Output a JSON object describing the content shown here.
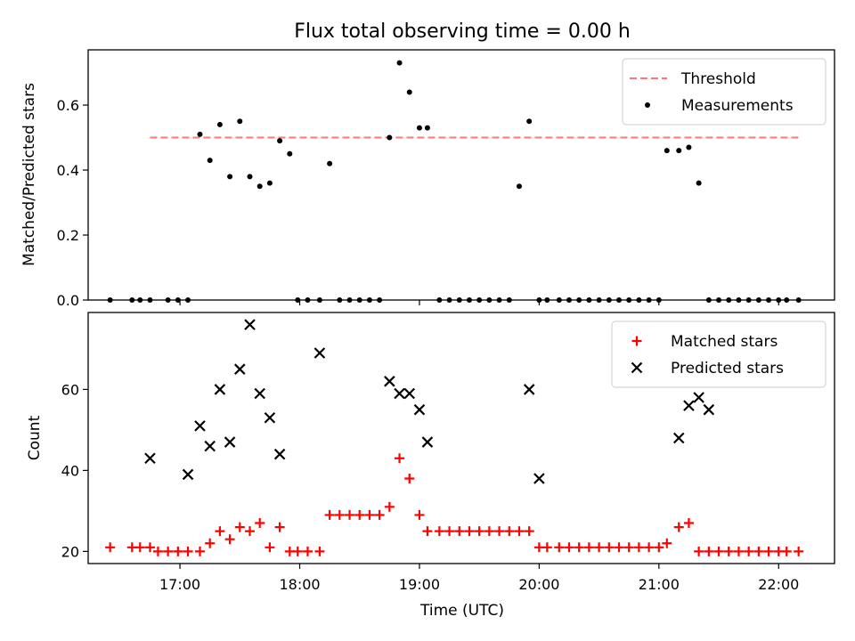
{
  "figure": {
    "title": "Flux total observing time = 0.00 h"
  },
  "chart_data": [
    {
      "type": "scatter",
      "ylabel": "Matched/Predicted stars",
      "xlabel": "",
      "xlim": [
        "16:14",
        "22:28"
      ],
      "ylim": [
        0,
        0.77
      ],
      "yticks": [
        "0.0",
        "0.2",
        "0.4",
        "0.6"
      ],
      "grid": false,
      "legend_position": "top-right",
      "threshold": {
        "name": "Threshold",
        "value": 0.5,
        "x_range": [
          "16:45",
          "22:11"
        ],
        "color": "#ff7777",
        "style": "dashed"
      },
      "series": [
        {
          "name": "Measurements",
          "color": "#000000",
          "marker": "dot",
          "x": [
            "16:25",
            "16:36",
            "16:40",
            "16:45",
            "16:54",
            "16:59",
            "17:04",
            "17:10",
            "17:15",
            "17:20",
            "17:25",
            "17:30",
            "17:35",
            "17:40",
            "17:45",
            "17:50",
            "17:55",
            "17:59",
            "18:04",
            "18:10",
            "18:15",
            "18:20",
            "18:25",
            "18:30",
            "18:35",
            "18:40",
            "18:45",
            "18:50",
            "18:55",
            "19:00",
            "19:04",
            "19:10",
            "19:15",
            "19:20",
            "19:25",
            "19:30",
            "19:35",
            "19:40",
            "19:45",
            "19:50",
            "19:55",
            "20:00",
            "20:04",
            "20:10",
            "20:15",
            "20:20",
            "20:25",
            "20:30",
            "20:35",
            "20:40",
            "20:45",
            "20:50",
            "20:55",
            "21:00",
            "21:04",
            "21:10",
            "21:15",
            "21:20",
            "21:25",
            "21:30",
            "21:35",
            "21:40",
            "21:45",
            "21:50",
            "21:55",
            "22:00",
            "22:04",
            "22:10"
          ],
          "y": [
            0.0,
            0.0,
            0.0,
            0.0,
            0.0,
            0.0,
            0.0,
            0.51,
            0.43,
            0.54,
            0.38,
            0.55,
            0.38,
            0.35,
            0.36,
            0.49,
            0.45,
            0.0,
            0.0,
            0.0,
            0.42,
            0.0,
            0.0,
            0.0,
            0.0,
            0.0,
            0.5,
            0.73,
            0.64,
            0.53,
            0.53,
            0.0,
            0.0,
            0.0,
            0.0,
            0.0,
            0.0,
            0.0,
            0.0,
            0.35,
            0.55,
            0.0,
            0.0,
            0.0,
            0.0,
            0.0,
            0.0,
            0.0,
            0.0,
            0.0,
            0.0,
            0.0,
            0.0,
            0.0,
            0.46,
            0.46,
            0.47,
            0.36,
            0.0,
            0.0,
            0.0,
            0.0,
            0.0,
            0.0,
            0.0,
            0.0,
            0.0,
            0.0
          ]
        }
      ]
    },
    {
      "type": "scatter",
      "ylabel": "Count",
      "xlabel": "Time (UTC)",
      "xlim": [
        "16:14",
        "22:28"
      ],
      "ylim": [
        17,
        79
      ],
      "yticks": [
        "20",
        "40",
        "60"
      ],
      "xticks": [
        "17:00",
        "18:00",
        "19:00",
        "20:00",
        "21:00",
        "22:00"
      ],
      "grid": false,
      "legend_position": "top-right",
      "series": [
        {
          "name": "Matched stars",
          "color": "#ff0000",
          "marker": "plus",
          "x": [
            "16:25",
            "16:36",
            "16:40",
            "16:45",
            "16:49",
            "16:54",
            "16:59",
            "17:04",
            "17:10",
            "17:15",
            "17:20",
            "17:25",
            "17:30",
            "17:35",
            "17:40",
            "17:45",
            "17:50",
            "17:55",
            "17:59",
            "18:04",
            "18:10",
            "18:15",
            "18:20",
            "18:25",
            "18:30",
            "18:35",
            "18:40",
            "18:45",
            "18:50",
            "18:55",
            "19:00",
            "19:04",
            "19:10",
            "19:15",
            "19:20",
            "19:25",
            "19:30",
            "19:35",
            "19:40",
            "19:45",
            "19:50",
            "19:55",
            "20:00",
            "20:04",
            "20:10",
            "20:15",
            "20:20",
            "20:25",
            "20:30",
            "20:35",
            "20:40",
            "20:45",
            "20:50",
            "20:55",
            "21:00",
            "21:04",
            "21:10",
            "21:15",
            "21:20",
            "21:25",
            "21:30",
            "21:35",
            "21:40",
            "21:45",
            "21:50",
            "21:55",
            "22:00",
            "22:04",
            "22:10"
          ],
          "y": [
            21,
            21,
            21,
            21,
            20,
            20,
            20,
            20,
            20,
            22,
            25,
            23,
            26,
            25,
            27,
            21,
            26,
            20,
            20,
            20,
            20,
            29,
            29,
            29,
            29,
            29,
            29,
            31,
            43,
            38,
            29,
            25,
            25,
            25,
            25,
            25,
            25,
            25,
            25,
            25,
            25,
            25,
            21,
            21,
            21,
            21,
            21,
            21,
            21,
            21,
            21,
            21,
            21,
            21,
            21,
            22,
            26,
            27,
            20,
            20,
            20,
            20,
            20,
            20,
            20,
            20,
            20,
            20,
            20
          ]
        },
        {
          "name": "Predicted stars",
          "color": "#000000",
          "marker": "x",
          "x": [
            "16:45",
            "17:04",
            "17:10",
            "17:15",
            "17:20",
            "17:25",
            "17:30",
            "17:35",
            "17:40",
            "17:45",
            "17:50",
            "18:10",
            "18:45",
            "18:50",
            "18:55",
            "19:00",
            "19:04",
            "19:55",
            "20:00",
            "21:10",
            "21:15",
            "21:20",
            "21:25"
          ],
          "y": [
            43,
            39,
            51,
            46,
            60,
            47,
            65,
            76,
            59,
            53,
            44,
            69,
            62,
            59,
            59,
            55,
            47,
            60,
            38,
            48,
            56,
            58,
            55
          ]
        }
      ]
    }
  ]
}
